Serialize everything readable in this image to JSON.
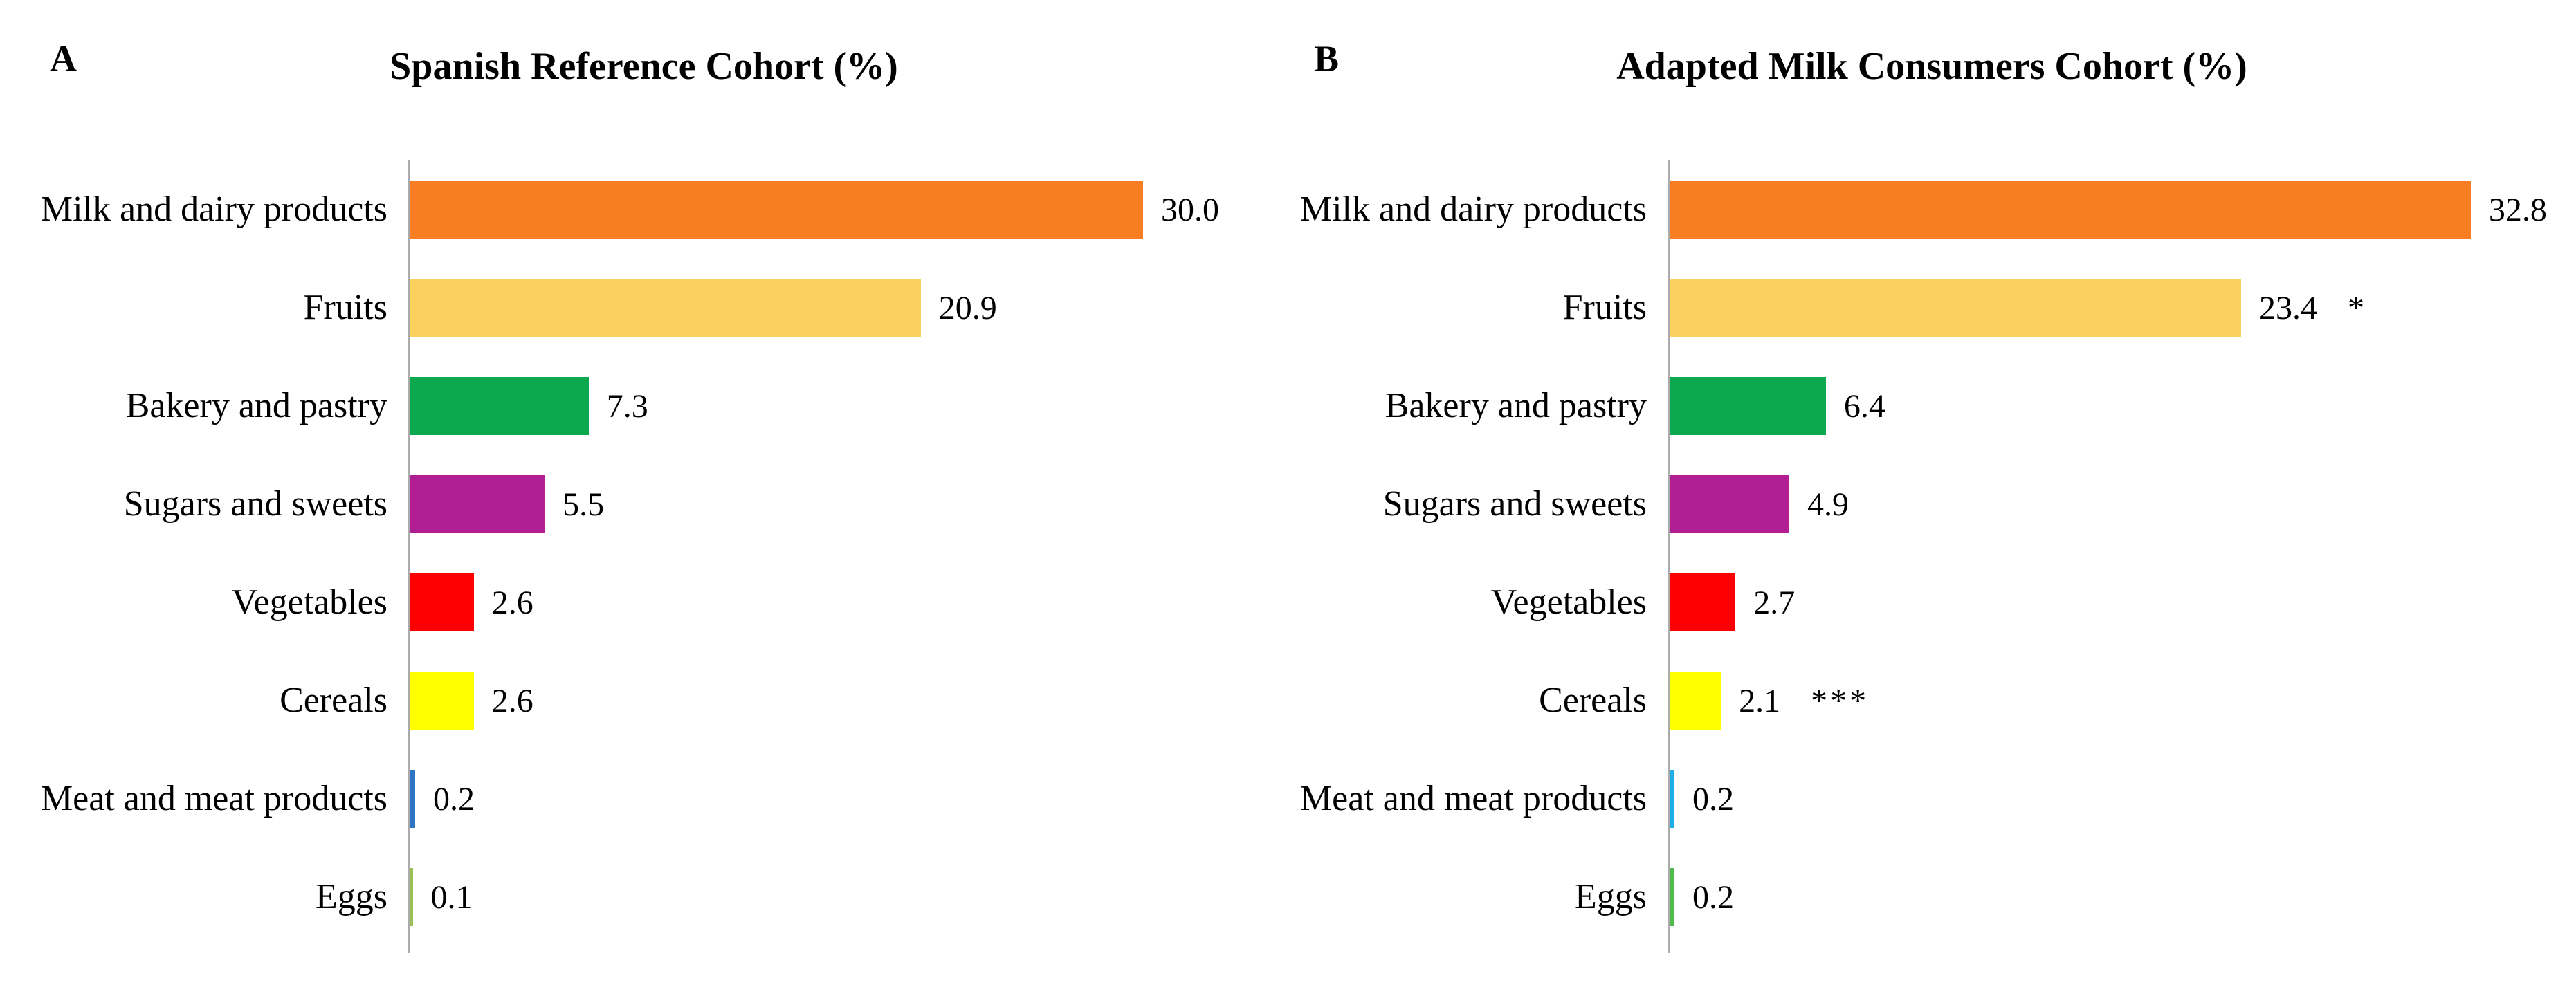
{
  "figure": {
    "background": "#ffffff",
    "axis_color": "#ababab",
    "panels": [
      {
        "panel_label": "A",
        "title": "Spanish Reference Cohort (%)",
        "rows": [
          {
            "label": "Milk and dairy products",
            "value": "30.0",
            "sig": "",
            "color": "#f97e23"
          },
          {
            "label": "Fruits",
            "value": "20.9",
            "sig": "",
            "color": "#fcd05f"
          },
          {
            "label": "Bakery and pastry",
            "value": "7.3",
            "sig": "",
            "color": "#0ca84e"
          },
          {
            "label": "Sugars and sweets",
            "value": "5.5",
            "sig": "",
            "color": "#b21e94"
          },
          {
            "label": "Vegetables",
            "value": "2.6",
            "sig": "",
            "color": "#fe0000"
          },
          {
            "label": "Cereals",
            "value": "2.6",
            "sig": "",
            "color": "#ffff00"
          },
          {
            "label": "Meat and meat products",
            "value": "0.2",
            "sig": "",
            "color": "#2e75c6"
          },
          {
            "label": "Eggs",
            "value": "0.1",
            "sig": "",
            "color": "#9cbf53"
          }
        ]
      },
      {
        "panel_label": "B",
        "title": "Adapted Milk Consumers Cohort (%)",
        "rows": [
          {
            "label": "Milk and dairy products",
            "value": "32.8",
            "sig": "",
            "color": "#f97e23"
          },
          {
            "label": "Fruits",
            "value": "23.4",
            "sig": "*",
            "color": "#fcd05f"
          },
          {
            "label": "Bakery and pastry",
            "value": "6.4",
            "sig": "",
            "color": "#0ca84e"
          },
          {
            "label": "Sugars and sweets",
            "value": "4.9",
            "sig": "",
            "color": "#b21e94"
          },
          {
            "label": "Vegetables",
            "value": "2.7",
            "sig": "",
            "color": "#fe0000"
          },
          {
            "label": "Cereals",
            "value": "2.1",
            "sig": "***",
            "color": "#ffff00"
          },
          {
            "label": "Meat and meat products",
            "value": "0.2",
            "sig": "",
            "color": "#22ace8"
          },
          {
            "label": "Eggs",
            "value": "0.2",
            "sig": "",
            "color": "#4ebc4b"
          }
        ]
      }
    ]
  },
  "chart_data": [
    {
      "type": "bar",
      "orientation": "horizontal",
      "title": "Spanish Reference Cohort (%)",
      "panel_label": "A",
      "categories": [
        "Milk and dairy products",
        "Fruits",
        "Bakery and pastry",
        "Sugars and sweets",
        "Vegetables",
        "Cereals",
        "Meat and meat products",
        "Eggs"
      ],
      "values": [
        30.0,
        20.9,
        7.3,
        5.5,
        2.6,
        2.6,
        0.2,
        0.1
      ],
      "bar_colors": [
        "#f97e23",
        "#fcd05f",
        "#0ca84e",
        "#b21e94",
        "#fe0000",
        "#ffff00",
        "#2e75c6",
        "#9cbf53"
      ],
      "data_labels": [
        "30.0",
        "20.9",
        "7.3",
        "5.5",
        "2.6",
        "2.6",
        "0.2",
        "0.1"
      ],
      "significance": [
        "",
        "",
        "",
        "",
        "",
        "",
        "",
        ""
      ],
      "xlabel": "",
      "ylabel": "",
      "xlim": [
        0,
        35
      ],
      "grid": false,
      "legend": false
    },
    {
      "type": "bar",
      "orientation": "horizontal",
      "title": "Adapted Milk Consumers Cohort (%)",
      "panel_label": "B",
      "categories": [
        "Milk and dairy products",
        "Fruits",
        "Bakery and pastry",
        "Sugars and sweets",
        "Vegetables",
        "Cereals",
        "Meat and meat products",
        "Eggs"
      ],
      "values": [
        32.8,
        23.4,
        6.4,
        4.9,
        2.7,
        2.1,
        0.2,
        0.2
      ],
      "bar_colors": [
        "#f97e23",
        "#fcd05f",
        "#0ca84e",
        "#b21e94",
        "#fe0000",
        "#ffff00",
        "#22ace8",
        "#4ebc4b"
      ],
      "data_labels": [
        "32.8",
        "23.4",
        "6.4",
        "4.9",
        "2.7",
        "2.1",
        "0.2",
        "0.2"
      ],
      "significance": [
        "",
        "*",
        "",
        "",
        "",
        "***",
        "",
        ""
      ],
      "xlabel": "",
      "ylabel": "",
      "xlim": [
        0,
        35
      ],
      "grid": false,
      "legend": false
    }
  ]
}
